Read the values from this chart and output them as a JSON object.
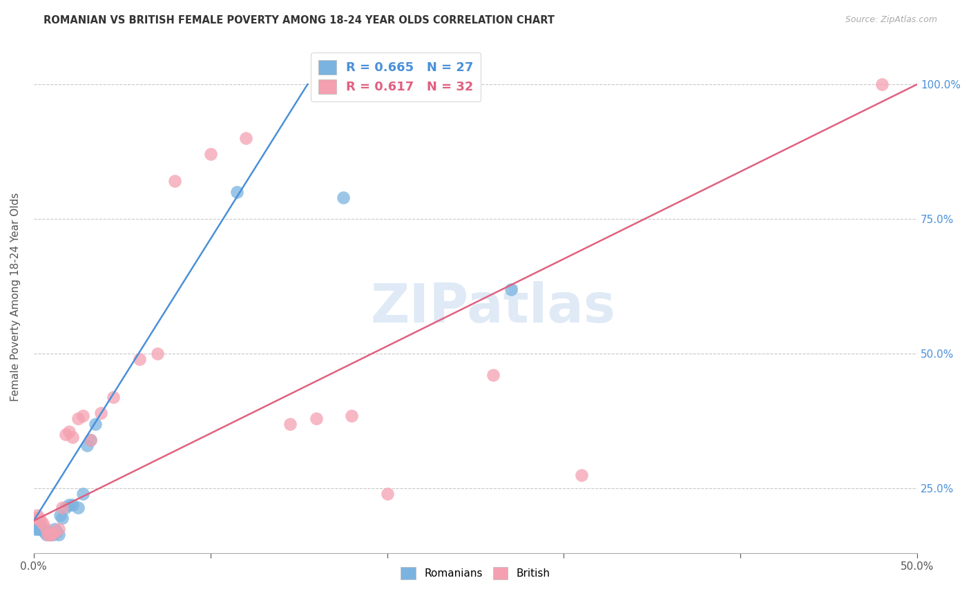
{
  "title": "ROMANIAN VS BRITISH FEMALE POVERTY AMONG 18-24 YEAR OLDS CORRELATION CHART",
  "source": "Source: ZipAtlas.com",
  "ylabel": "Female Poverty Among 18-24 Year Olds",
  "xlim": [
    0.0,
    0.5
  ],
  "ylim": [
    0.13,
    1.08
  ],
  "xtick_vals": [
    0.0,
    0.1,
    0.2,
    0.3,
    0.4,
    0.5
  ],
  "xtick_labels_show": [
    "0.0%",
    "",
    "",
    "",
    "",
    "50.0%"
  ],
  "ytick_vals": [
    0.25,
    0.5,
    0.75,
    1.0
  ],
  "ytick_labels": [
    "25.0%",
    "50.0%",
    "75.0%",
    "100.0%"
  ],
  "romanian_color": "#7ab3e0",
  "british_color": "#f4a0b0",
  "romanian_line_color": "#4a90d9",
  "british_line_color": "#e06080",
  "romanian_R": 0.665,
  "romanian_N": 27,
  "british_R": 0.617,
  "british_N": 32,
  "legend_R_color": "#4a90d9",
  "legend_R_british_color": "#e06080",
  "bg_color": "#ffffff",
  "grid_color": "#c8c8c8",
  "watermark": "ZIPatlas",
  "romanian_x": [
    0.001,
    0.002,
    0.003,
    0.004,
    0.005,
    0.006,
    0.007,
    0.008,
    0.009,
    0.01,
    0.011,
    0.012,
    0.013,
    0.014,
    0.015,
    0.016,
    0.018,
    0.02,
    0.022,
    0.025,
    0.028,
    0.03,
    0.032,
    0.035,
    0.115,
    0.175,
    0.27
  ],
  "romanian_y": [
    0.175,
    0.175,
    0.175,
    0.18,
    0.175,
    0.17,
    0.165,
    0.17,
    0.165,
    0.165,
    0.165,
    0.175,
    0.17,
    0.165,
    0.2,
    0.195,
    0.215,
    0.22,
    0.22,
    0.215,
    0.24,
    0.33,
    0.34,
    0.37,
    0.8,
    0.79,
    0.62
  ],
  "british_x": [
    0.001,
    0.002,
    0.003,
    0.004,
    0.005,
    0.007,
    0.008,
    0.009,
    0.01,
    0.012,
    0.014,
    0.016,
    0.018,
    0.02,
    0.022,
    0.025,
    0.028,
    0.032,
    0.038,
    0.045,
    0.06,
    0.07,
    0.08,
    0.1,
    0.12,
    0.145,
    0.16,
    0.18,
    0.2,
    0.26,
    0.31,
    0.48
  ],
  "british_y": [
    0.195,
    0.2,
    0.195,
    0.19,
    0.185,
    0.175,
    0.165,
    0.165,
    0.165,
    0.168,
    0.175,
    0.215,
    0.35,
    0.355,
    0.345,
    0.38,
    0.385,
    0.34,
    0.39,
    0.42,
    0.49,
    0.5,
    0.82,
    0.87,
    0.9,
    0.37,
    0.38,
    0.385,
    0.24,
    0.46,
    0.275,
    1.0
  ],
  "blue_line_x0": 0.0,
  "blue_line_y0": 0.19,
  "blue_line_x1": 0.155,
  "blue_line_y1": 1.0,
  "pink_line_x0": 0.0,
  "pink_line_y0": 0.19,
  "pink_line_x1": 0.5,
  "pink_line_y1": 1.0
}
